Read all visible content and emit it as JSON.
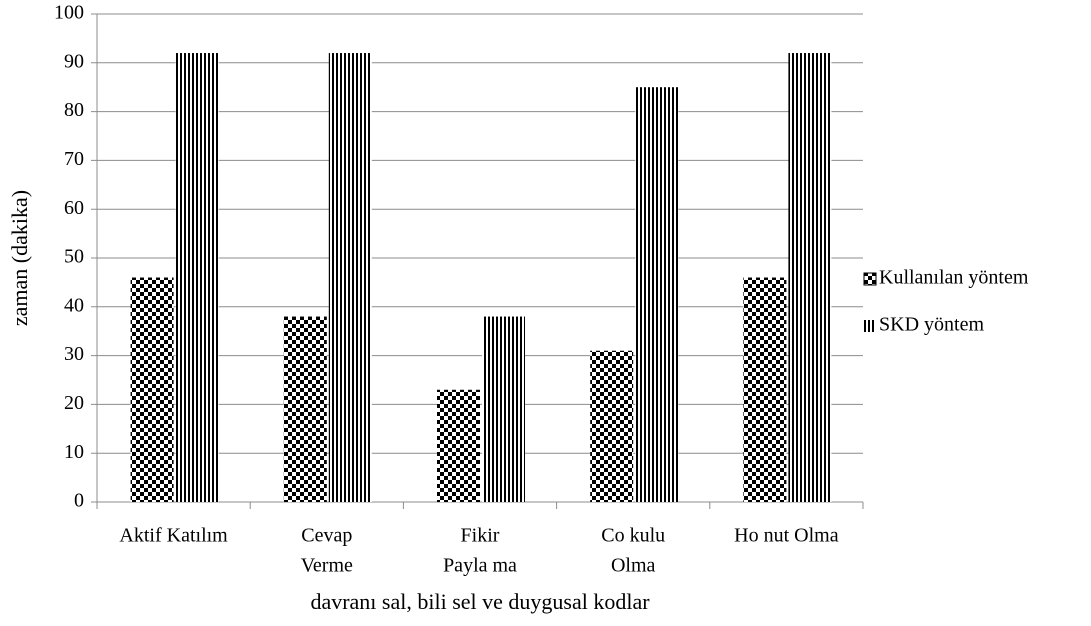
{
  "chart_data": {
    "type": "bar",
    "y_label": "zaman (dakika)",
    "x_label": "davranı sal, bili sel ve duygusal kodlar",
    "categories": [
      [
        "Aktif Katılım"
      ],
      [
        "Cevap",
        "Verme"
      ],
      [
        "Fikir",
        "Payla ma"
      ],
      [
        "Co kulu",
        "Olma"
      ],
      [
        "Ho nut Olma"
      ]
    ],
    "series": [
      {
        "name": "Kullanılan yöntem",
        "color": "#000000",
        "pattern": "checker",
        "values": [
          46,
          38,
          23,
          31,
          46
        ]
      },
      {
        "name": "SKD yöntem",
        "color": "#000000",
        "pattern": "stripes",
        "values": [
          92,
          92,
          38,
          85,
          92
        ]
      }
    ],
    "ylim": [
      0,
      100
    ],
    "yticks": [
      0,
      10,
      20,
      30,
      40,
      50,
      60,
      70,
      80,
      90,
      100
    ],
    "grid": true,
    "legend": "right"
  }
}
